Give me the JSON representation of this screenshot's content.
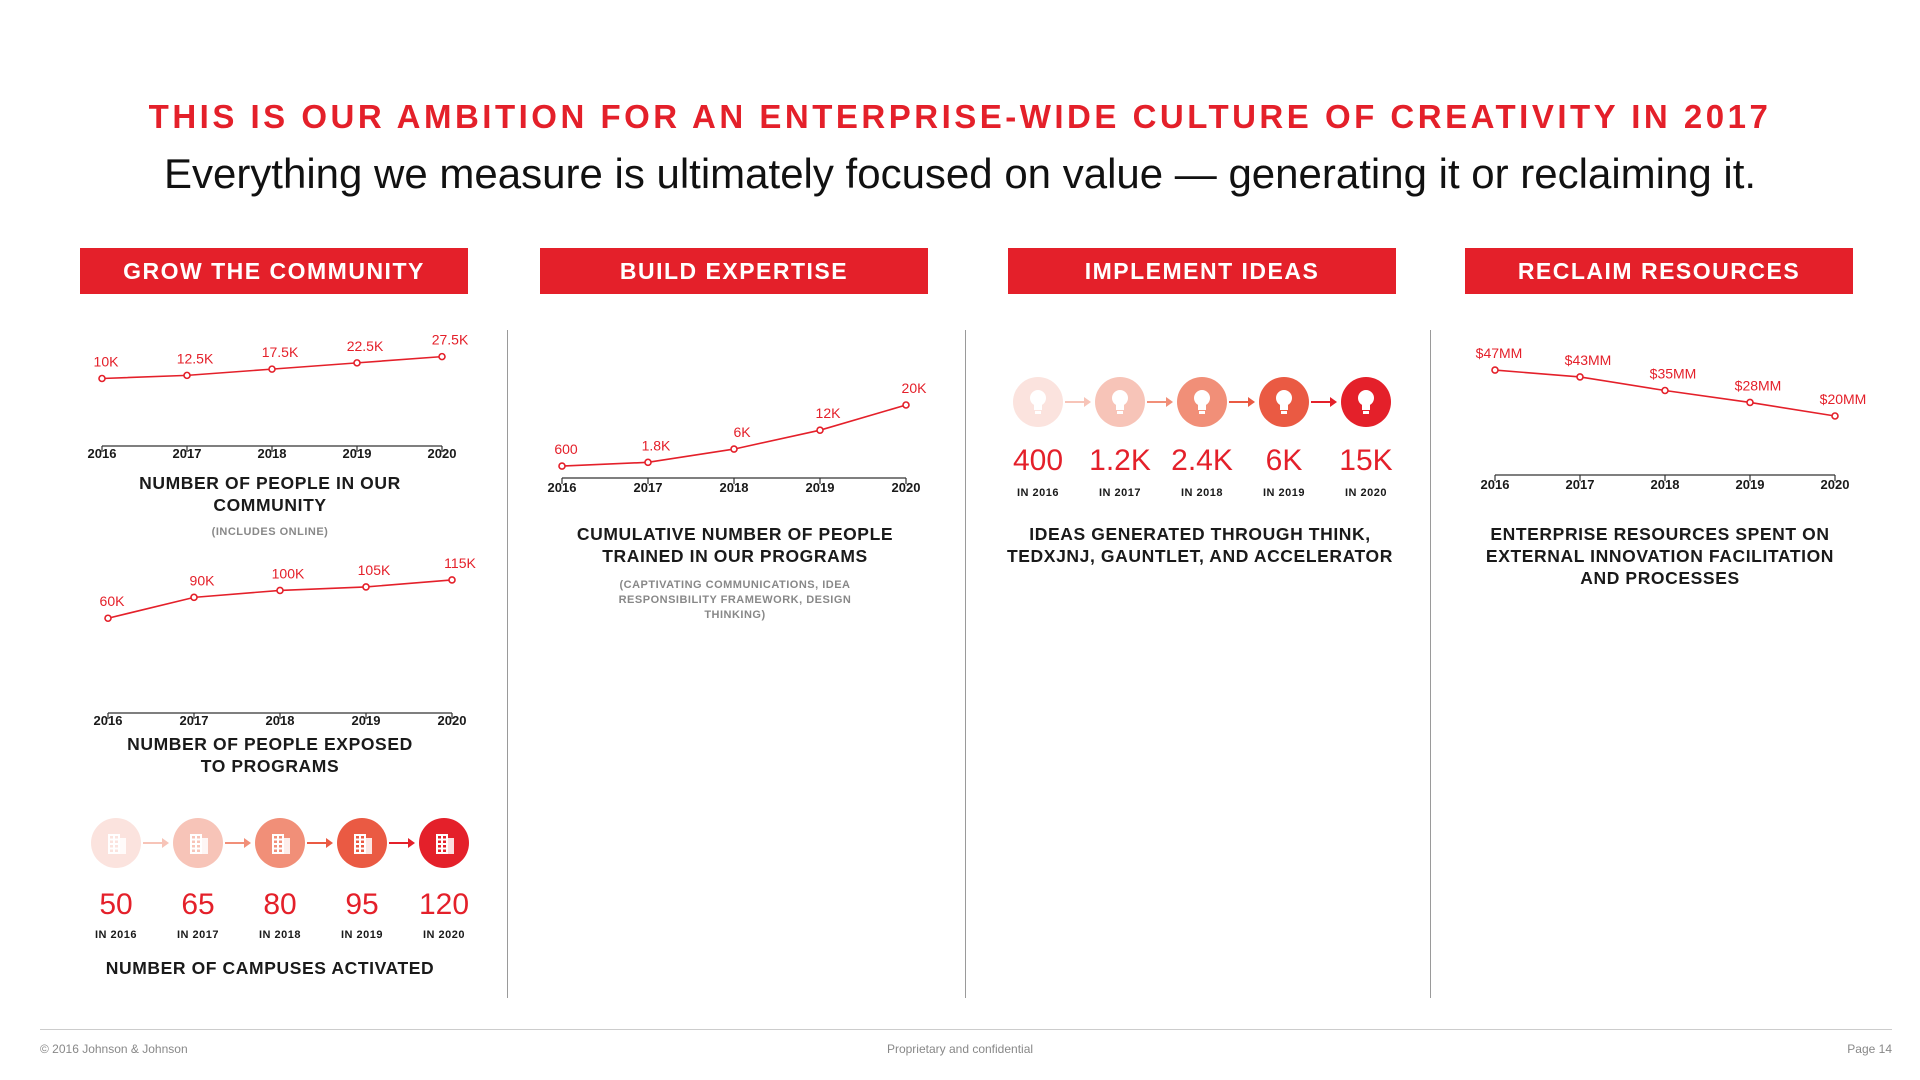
{
  "header": {
    "title": "THIS IS OUR AMBITION FOR AN ENTERPRISE-WIDE CULTURE OF CREATIVITY IN 2017",
    "subtitle": "Everything we measure is ultimately focused on value — generating it or reclaiming it."
  },
  "columns": [
    {
      "label": "GROW THE COMMUNITY"
    },
    {
      "label": "BUILD EXPERTISE"
    },
    {
      "label": "IMPLEMENT IDEAS"
    },
    {
      "label": "RECLAIM RESOURCES"
    }
  ],
  "colors": {
    "accent": "#e4202a"
  },
  "chart_data": [
    {
      "type": "line",
      "categories": [
        "2016",
        "2017",
        "2018",
        "2019",
        "2020"
      ],
      "values": [
        10000,
        12500,
        17500,
        22500,
        27500
      ],
      "data_labels": [
        "10K",
        "12.5K",
        "17.5K",
        "22.5K",
        "27.5K"
      ],
      "title": "NUMBER OF PEOPLE IN OUR COMMUNITY",
      "note": "(INCLUDES ONLINE)",
      "ylim": [
        -20000,
        28000
      ]
    },
    {
      "type": "line",
      "categories": [
        "2016",
        "2017",
        "2018",
        "2019",
        "2020"
      ],
      "values": [
        60000,
        90000,
        100000,
        105000,
        115000
      ],
      "data_labels": [
        "60K",
        "90K",
        "100K",
        "105K",
        "115K"
      ],
      "title": "NUMBER OF PEOPLE EXPOSED TO PROGRAMS",
      "ylim": [
        0,
        125000
      ]
    },
    {
      "type": "line",
      "categories": [
        "2016",
        "2017",
        "2018",
        "2019",
        "2020"
      ],
      "values": [
        600,
        1800,
        6000,
        12000,
        20000
      ],
      "data_labels": [
        "600",
        "1.8K",
        "6K",
        "12K",
        "20K"
      ],
      "title": "CUMULATIVE NUMBER OF PEOPLE TRAINED IN OUR PROGRAMS",
      "note": "(CAPTIVATING COMMUNICATIONS, IDEA RESPONSIBILITY FRAMEWORK, DESIGN THINKING)",
      "ylim": [
        0,
        20000
      ]
    },
    {
      "type": "line",
      "categories": [
        "2016",
        "2017",
        "2018",
        "2019",
        "2020"
      ],
      "values": [
        47,
        43,
        35,
        28,
        20
      ],
      "data_labels": [
        "$47MM",
        "$43MM",
        "$35MM",
        "$28MM",
        "$20MM"
      ],
      "title": "ENTERPRISE RESOURCES SPENT ON EXTERNAL INNOVATION FACILITATION AND PROCESSES",
      "ylim": [
        0,
        50
      ]
    }
  ],
  "ideas": {
    "title": "IDEAS GENERATED THROUGH THINK, TEDXJNJ, GAUNTLET, AND ACCELERATOR",
    "icon": "lightbulb-icon",
    "items": [
      {
        "value": "400",
        "year": "IN 2016"
      },
      {
        "value": "1.2K",
        "year": "IN 2017"
      },
      {
        "value": "2.4K",
        "year": "IN 2018"
      },
      {
        "value": "6K",
        "year": "IN 2019"
      },
      {
        "value": "15K",
        "year": "IN 2020"
      }
    ]
  },
  "campuses": {
    "title": "NUMBER OF CAMPUSES ACTIVATED",
    "icon": "building-icon",
    "items": [
      {
        "value": "50",
        "year": "IN 2016"
      },
      {
        "value": "65",
        "year": "IN 2017"
      },
      {
        "value": "80",
        "year": "IN 2018"
      },
      {
        "value": "95",
        "year": "IN 2019"
      },
      {
        "value": "120",
        "year": "IN 2020"
      }
    ]
  },
  "footer": {
    "left": "© 2016 Johnson & Johnson",
    "center": "Proprietary and confidential",
    "right": "Page 14"
  }
}
